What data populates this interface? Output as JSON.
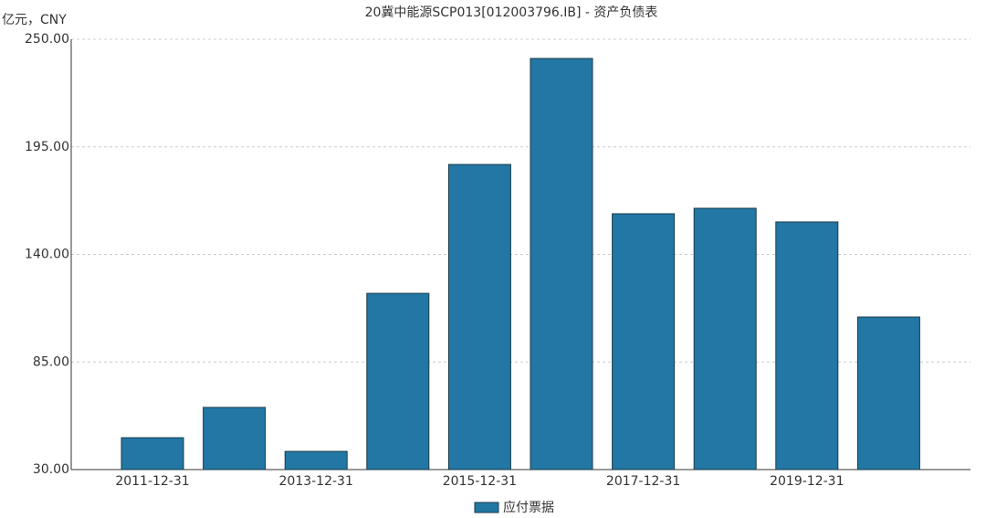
{
  "chart_data": {
    "type": "bar",
    "title": "20冀中能源SCP013[012003796.IB] - 资产负债表",
    "y_axis_label": "亿元，CNY",
    "categories": [
      "2011-12-31",
      null,
      "2013-12-31",
      null,
      "2015-12-31",
      null,
      "2017-12-31",
      null,
      "2019-12-31",
      null
    ],
    "series": [
      {
        "name": "应付票据",
        "color": "#2277a4",
        "values": [
          46.3,
          61.8,
          39.3,
          120.1,
          186,
          240.2,
          160.8,
          163.6,
          156.6,
          108
        ]
      }
    ],
    "ylim": [
      30,
      250
    ],
    "yticks": [
      {
        "value": 30,
        "label": "30.00"
      },
      {
        "value": 85,
        "label": "85.00"
      },
      {
        "value": 140,
        "label": "140.00"
      },
      {
        "value": 195,
        "label": "195.00"
      },
      {
        "value": 250,
        "label": "250.00"
      }
    ],
    "grid": true,
    "legend": "bottom"
  }
}
